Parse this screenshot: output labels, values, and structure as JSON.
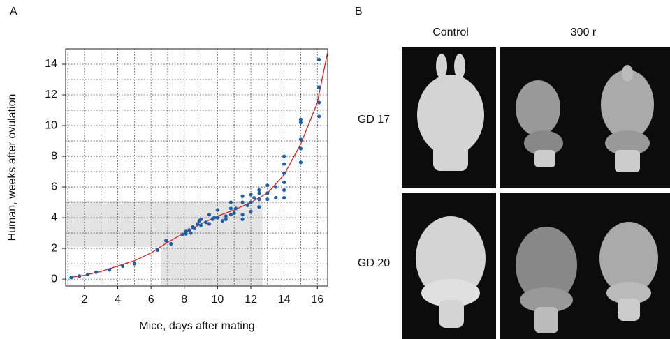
{
  "panel_labels": [
    "A",
    "B"
  ],
  "chart_data": {
    "type": "scatter",
    "x_label": "Mice, days after mating",
    "y_label": "Human, weeks after ovulation",
    "xlim": [
      0.87,
      16.62
    ],
    "ylim": [
      -0.45,
      15
    ],
    "xticks": [
      2,
      4,
      6,
      8,
      10,
      12,
      14,
      16
    ],
    "yticks": [
      0,
      2,
      4,
      6,
      8,
      10,
      12,
      14
    ],
    "xgrid": [
      1,
      3,
      5,
      7,
      9,
      11,
      13,
      15,
      2,
      4,
      6,
      8,
      10,
      12,
      14,
      16
    ],
    "ygrid": [
      1,
      3,
      5,
      7,
      9,
      11,
      13,
      15,
      0,
      2,
      4,
      6,
      8,
      10,
      12,
      14
    ],
    "shaded_color": "#e4e4e4",
    "shaded_regions": [
      {
        "x": [
          0.87,
          12.7
        ],
        "y": [
          2.1,
          5.1
        ]
      },
      {
        "x": [
          6.6,
          12.7
        ],
        "y": [
          -0.45,
          2.1
        ]
      }
    ],
    "fit_line": {
      "color": "#d62020",
      "x": [
        1.1,
        2,
        3,
        4,
        5,
        6,
        7,
        8,
        9,
        10,
        11,
        12,
        13,
        14,
        15,
        16,
        16.6
      ],
      "y": [
        0.1,
        0.25,
        0.5,
        0.85,
        1.2,
        1.7,
        2.4,
        3.0,
        3.6,
        4.1,
        4.5,
        5.0,
        5.6,
        6.8,
        8.8,
        11.5,
        14.7
      ]
    },
    "points": {
      "color": "#1f5fa8",
      "x": [
        1.2,
        1.7,
        2.2,
        2.7,
        3.5,
        4.3,
        5,
        6.4,
        6.9,
        7.2,
        7.9,
        8.1,
        8.1,
        8.3,
        8.4,
        8.5,
        8.6,
        8.8,
        8.9,
        9.0,
        9.0,
        9.3,
        9.5,
        9.5,
        9.7,
        9.8,
        10,
        10,
        10.3,
        10.5,
        10.5,
        10.8,
        10.8,
        10.8,
        11,
        11.1,
        11.5,
        11.5,
        11.5,
        11.5,
        11.8,
        12,
        12,
        12,
        12.2,
        12.5,
        12.5,
        12.5,
        12.5,
        13,
        13,
        13,
        13.5,
        13.5,
        14,
        14,
        14,
        14,
        14,
        14,
        15,
        15,
        15,
        15,
        15,
        16.1,
        16.1,
        16.1,
        16.1
      ],
      "y": [
        0.1,
        0.2,
        0.3,
        0.45,
        0.6,
        0.85,
        1.0,
        1.9,
        2.5,
        2.3,
        2.9,
        3.1,
        2.95,
        3.2,
        3.0,
        3.4,
        3.3,
        3.6,
        3.8,
        3.5,
        3.9,
        3.7,
        4.2,
        3.6,
        3.9,
        4.0,
        4.5,
        4.0,
        3.8,
        4.1,
        3.9,
        4.6,
        4.2,
        5.0,
        4.3,
        4.6,
        5.4,
        5.0,
        4.2,
        3.9,
        4.8,
        5.5,
        5.0,
        4.4,
        5.3,
        5.8,
        5.6,
        5.2,
        4.7,
        6.1,
        5.6,
        5.2,
        6.0,
        5.3,
        8.0,
        7.5,
        6.9,
        6.3,
        5.8,
        5.3,
        10.4,
        10.2,
        9.1,
        8.5,
        7.6,
        14.3,
        12.5,
        11.5,
        10.6
      ]
    }
  },
  "photo_panel": {
    "columns": [
      "Control",
      "300 r"
    ],
    "rows": [
      "GD 17",
      "GD 20"
    ]
  }
}
